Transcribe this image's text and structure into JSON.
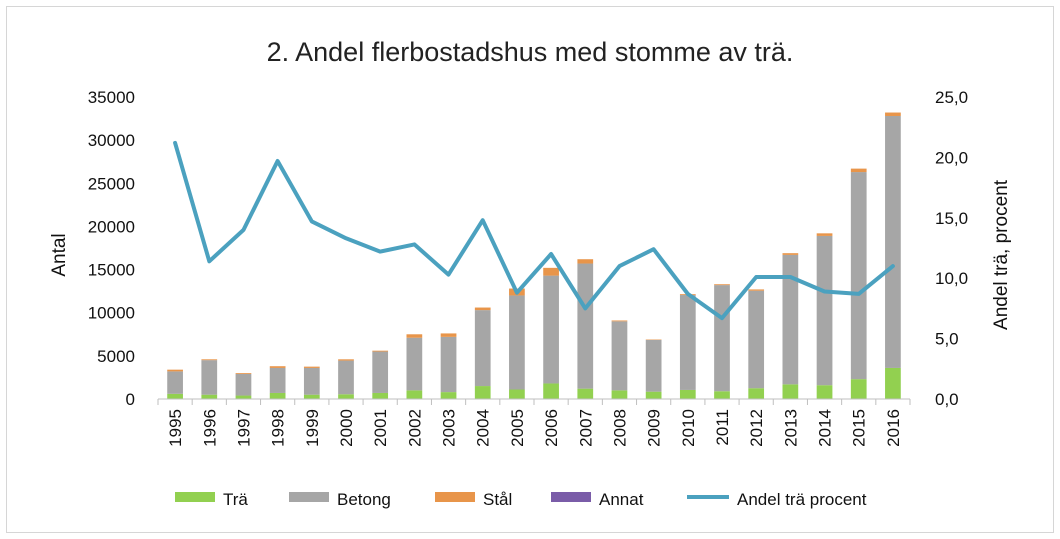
{
  "chart_data": {
    "type": "bar",
    "title": "2. Andel flerbostadshus med stomme av trä.",
    "ylabel": "Antal",
    "y2label": "Andel trä,  procent",
    "ylim": [
      0,
      35000
    ],
    "y2lim": [
      0,
      25
    ],
    "yticks": [
      "0",
      "5000",
      "10000",
      "15000",
      "20000",
      "25000",
      "30000",
      "35000"
    ],
    "y2ticks": [
      "0,0",
      "5,0",
      "10,0",
      "15,0",
      "20,0",
      "25,0"
    ],
    "categories": [
      "1995",
      "1996",
      "1997",
      "1998",
      "1999",
      "2000",
      "2001",
      "2002",
      "2003",
      "2004",
      "2005",
      "2006",
      "2007",
      "2008",
      "2009",
      "2010",
      "2011",
      "2012",
      "2013",
      "2014",
      "2015",
      "2016"
    ],
    "stacked": true,
    "series": [
      {
        "name": "Trä",
        "color": "#92d050",
        "values": [
          600,
          500,
          400,
          700,
          500,
          550,
          700,
          1000,
          800,
          1500,
          1100,
          1800,
          1200,
          1000,
          850,
          1050,
          900,
          1250,
          1700,
          1600,
          2300,
          3600
        ]
      },
      {
        "name": "Betong",
        "color": "#a6a6a6",
        "values": [
          2600,
          4000,
          2500,
          2900,
          3100,
          3900,
          4800,
          6100,
          6400,
          8800,
          10900,
          12500,
          14500,
          8000,
          6000,
          11000,
          12300,
          11300,
          15000,
          17300,
          24000,
          29200
        ]
      },
      {
        "name": "Stål",
        "color": "#e8954a",
        "values": [
          200,
          100,
          100,
          200,
          150,
          150,
          100,
          400,
          400,
          300,
          800,
          900,
          500,
          100,
          50,
          100,
          100,
          150,
          200,
          300,
          400,
          400
        ]
      },
      {
        "name": "Annat",
        "color": "#7a5ca8",
        "values": [
          0,
          0,
          0,
          0,
          0,
          0,
          0,
          0,
          0,
          0,
          0,
          0,
          0,
          0,
          0,
          0,
          0,
          0,
          0,
          0,
          0,
          0
        ]
      }
    ],
    "line": {
      "name": "Andel trä procent",
      "color": "#4ba1bf",
      "axis": "right",
      "values": [
        21.2,
        11.4,
        14.0,
        19.7,
        14.7,
        13.3,
        12.2,
        12.8,
        10.3,
        14.8,
        8.8,
        12.0,
        7.5,
        11.0,
        12.4,
        8.7,
        6.7,
        10.1,
        10.1,
        8.9,
        8.7,
        11.0
      ]
    },
    "legend_position": "bottom",
    "grid": false
  }
}
